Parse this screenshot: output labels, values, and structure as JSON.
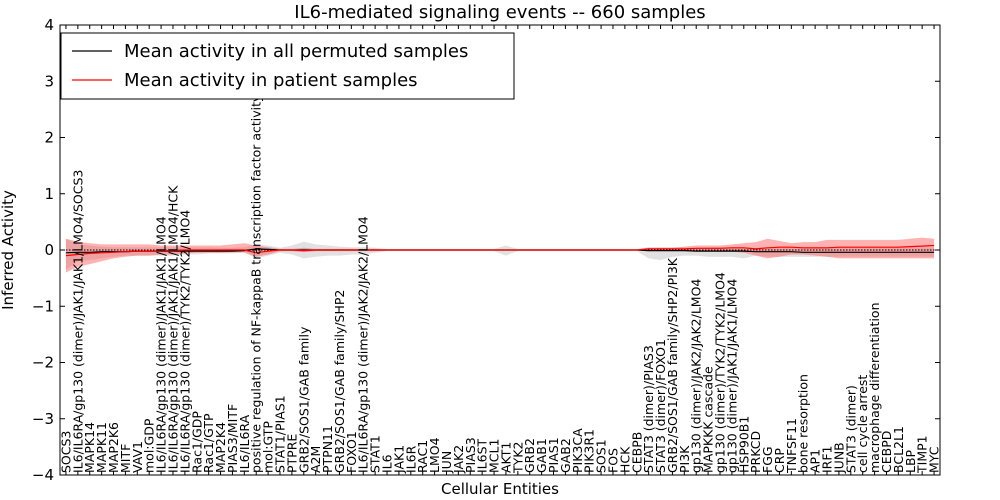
{
  "chart_data": {
    "type": "line",
    "title": "IL6-mediated signaling events -- 660 samples",
    "xlabel": "Cellular Entities",
    "ylabel": "Inferred Activity",
    "ylim": [
      -4,
      4
    ],
    "yticks": [
      -4,
      -3,
      -2,
      -1,
      0,
      1,
      2,
      3,
      4
    ],
    "grid": false,
    "legend_position": "top-left",
    "categories": [
      "SOCS3",
      "IL6/IL6RA/gp130 (dimer)/JAK1/JAK1/LMO4/SOCS3",
      "MAPK14",
      "MAPK11",
      "MAP2K6",
      "MITF",
      "VAV1",
      "mol:GDP",
      "IL6/IL6RA/gp130 (dimer)/JAK1/JAK1/LMO4",
      "IL6/IL6RA/gp130 (dimer)/JAK1/JAK1/LMO4/HCK",
      "IL6/IL6RA/gp130 (dimer)/TYK2/TYK2/LMO4",
      "Rac1/GDP",
      "Rac1/GTP",
      "MAP2K4",
      "PIAS3/MITF",
      "IL6/IL6RA",
      "positive regulation of NF-kappaB transcription factor activity",
      "mol:GTP",
      "STAT1/PIAS1",
      "PTPRE",
      "GRB2/SOS1/GAB family",
      "A2M",
      "PTPN11",
      "GRB2/SOS1/GAB family/SHP2",
      "FOXO1",
      "IL6/IL6RA/gp130 (dimer)/JAK2/JAK2/LMO4",
      "STAT1",
      "IL6",
      "JAK1",
      "IL6R",
      "RAC1",
      "LMO4",
      "JUN",
      "JAK2",
      "PIAS3",
      "IL6ST",
      "MCL1",
      "AKT1",
      "TYK2",
      "GRB2",
      "GAB1",
      "PIAS1",
      "GAB2",
      "PIK3CA",
      "PIK3R1",
      "SOS1",
      "FOS",
      "HCK",
      "CEBPB",
      "STAT3 (dimer)/PIAS3",
      "STAT3 (dimer)/FOXO1",
      "GRB2/SOS1/GAB family/SHP2/PI3K",
      "PI3K",
      "gp130 (dimer)/JAK2/JAK2/LMO4",
      "MAPKKK cascade",
      "gp130 (dimer)/TYK2/TYK2/LMO4",
      "gp130 (dimer)/JAK1/JAK1/LMO4",
      "HSP90B1",
      "PRKCD",
      "FGG",
      "CRP",
      "TNFSF11",
      "bone resorption",
      "AP1",
      "IRF1",
      "JUNB",
      "STAT3 (dimer)",
      "cell cycle arrest",
      "macrophage differentiation",
      "CEBPD",
      "BCL2L1",
      "LBP",
      "TIMP1",
      "MYC"
    ],
    "series": [
      {
        "name": "Mean activity in all permuted samples",
        "color": "#000000",
        "values": [
          -0.05,
          -0.04,
          -0.04,
          -0.03,
          -0.03,
          -0.03,
          -0.02,
          -0.02,
          -0.02,
          -0.02,
          -0.02,
          -0.02,
          -0.02,
          -0.02,
          -0.02,
          -0.01,
          0.02,
          0.01,
          0.0,
          0.0,
          0.0,
          0.0,
          0.0,
          0.0,
          0.0,
          0.0,
          0.0,
          0.0,
          0.0,
          0.0,
          0.0,
          0.0,
          0.0,
          0.0,
          0.0,
          0.0,
          0.0,
          0.0,
          0.0,
          0.0,
          0.0,
          0.0,
          0.0,
          0.0,
          0.0,
          0.0,
          0.0,
          0.0,
          0.0,
          -0.01,
          -0.01,
          -0.01,
          -0.01,
          -0.02,
          -0.02,
          -0.02,
          -0.02,
          -0.02,
          -0.03,
          -0.03,
          -0.03,
          -0.03,
          -0.04,
          -0.04,
          -0.04,
          -0.04,
          -0.04,
          -0.04,
          -0.04,
          -0.04,
          -0.04,
          -0.04,
          -0.04,
          -0.04
        ],
        "lower": [
          -0.35,
          -0.2,
          -0.18,
          -0.15,
          -0.12,
          -0.1,
          -0.1,
          -0.1,
          -0.1,
          -0.1,
          -0.08,
          -0.08,
          -0.06,
          -0.06,
          -0.06,
          -0.05,
          -0.15,
          -0.1,
          -0.05,
          -0.08,
          -0.15,
          -0.12,
          -0.1,
          -0.1,
          -0.08,
          -0.08,
          -0.05,
          -0.02,
          -0.02,
          -0.02,
          -0.02,
          -0.02,
          -0.02,
          -0.02,
          -0.02,
          -0.02,
          -0.02,
          -0.1,
          -0.02,
          -0.02,
          -0.02,
          -0.02,
          -0.02,
          -0.02,
          -0.02,
          -0.02,
          -0.02,
          -0.02,
          -0.02,
          -0.15,
          -0.18,
          -0.12,
          -0.1,
          -0.1,
          -0.12,
          -0.12,
          -0.12,
          -0.15,
          -0.1,
          -0.12,
          -0.12,
          -0.12,
          -0.12,
          -0.12,
          -0.12,
          -0.12,
          -0.12,
          -0.12,
          -0.12,
          -0.12,
          -0.12,
          -0.12,
          -0.12,
          -0.12
        ],
        "upper": [
          0.2,
          0.1,
          0.08,
          0.06,
          0.05,
          0.05,
          0.05,
          0.05,
          0.05,
          0.05,
          0.05,
          0.05,
          0.05,
          0.04,
          0.04,
          0.05,
          0.1,
          0.08,
          0.04,
          0.08,
          0.15,
          0.1,
          0.08,
          0.06,
          0.05,
          0.05,
          0.04,
          0.02,
          0.02,
          0.02,
          0.02,
          0.02,
          0.02,
          0.02,
          0.02,
          0.02,
          0.02,
          0.08,
          0.02,
          0.02,
          0.02,
          0.02,
          0.02,
          0.02,
          0.02,
          0.02,
          0.02,
          0.02,
          0.02,
          0.05,
          0.05,
          0.05,
          0.05,
          0.04,
          0.05,
          0.05,
          0.05,
          0.05,
          0.04,
          0.05,
          0.05,
          0.05,
          0.05,
          0.05,
          0.05,
          0.05,
          0.05,
          0.05,
          0.05,
          0.05,
          0.05,
          0.05,
          0.05,
          0.05
        ]
      },
      {
        "name": "Mean activity in patient samples",
        "color": "#ff0000",
        "values": [
          -0.1,
          -0.08,
          -0.06,
          -0.05,
          -0.04,
          -0.03,
          -0.02,
          -0.02,
          -0.01,
          -0.01,
          0.0,
          0.0,
          0.0,
          0.0,
          0.0,
          0.0,
          -0.05,
          -0.02,
          0.0,
          0.0,
          -0.01,
          0.0,
          0.0,
          0.0,
          0.0,
          0.0,
          0.0,
          0.0,
          0.0,
          0.0,
          0.0,
          0.0,
          0.0,
          0.0,
          0.0,
          0.0,
          0.0,
          0.0,
          0.0,
          0.0,
          0.0,
          0.0,
          0.0,
          0.0,
          0.0,
          0.0,
          0.0,
          0.0,
          0.0,
          0.02,
          0.02,
          0.02,
          0.02,
          0.03,
          0.03,
          0.03,
          0.04,
          0.04,
          0.02,
          0.04,
          0.05,
          0.05,
          0.04,
          0.04,
          0.04,
          0.05,
          0.05,
          0.05,
          0.05,
          0.05,
          0.05,
          0.06,
          0.07,
          0.08
        ],
        "lower": [
          -0.4,
          -0.3,
          -0.25,
          -0.2,
          -0.15,
          -0.12,
          -0.1,
          -0.1,
          -0.08,
          -0.08,
          -0.06,
          -0.05,
          -0.05,
          -0.05,
          -0.04,
          -0.04,
          -0.12,
          -0.08,
          -0.02,
          -0.02,
          -0.04,
          -0.02,
          -0.02,
          -0.02,
          -0.02,
          -0.02,
          -0.02,
          -0.01,
          -0.01,
          -0.01,
          -0.01,
          -0.01,
          -0.01,
          -0.01,
          -0.01,
          -0.01,
          -0.01,
          -0.01,
          -0.01,
          -0.01,
          -0.01,
          -0.01,
          -0.01,
          -0.01,
          -0.01,
          -0.01,
          -0.01,
          -0.01,
          -0.01,
          -0.02,
          -0.02,
          -0.02,
          -0.02,
          -0.02,
          -0.02,
          -0.03,
          -0.03,
          -0.05,
          -0.1,
          -0.15,
          -0.12,
          -0.08,
          -0.08,
          -0.1,
          -0.12,
          -0.15,
          -0.15,
          -0.15,
          -0.15,
          -0.15,
          -0.15,
          -0.15,
          -0.15,
          -0.15
        ],
        "upper": [
          0.2,
          0.15,
          0.12,
          0.1,
          0.1,
          0.1,
          0.1,
          0.1,
          0.08,
          0.08,
          0.08,
          0.08,
          0.08,
          0.08,
          0.1,
          0.12,
          0.08,
          0.05,
          0.02,
          0.02,
          0.04,
          0.02,
          0.02,
          0.02,
          0.02,
          0.02,
          0.02,
          0.01,
          0.01,
          0.01,
          0.01,
          0.01,
          0.01,
          0.01,
          0.01,
          0.01,
          0.01,
          0.01,
          0.01,
          0.01,
          0.01,
          0.01,
          0.01,
          0.01,
          0.01,
          0.01,
          0.01,
          0.01,
          0.01,
          0.04,
          0.04,
          0.04,
          0.06,
          0.08,
          0.08,
          0.08,
          0.1,
          0.12,
          0.14,
          0.2,
          0.16,
          0.12,
          0.14,
          0.14,
          0.18,
          0.18,
          0.18,
          0.18,
          0.18,
          0.18,
          0.18,
          0.2,
          0.22,
          0.2
        ]
      }
    ]
  }
}
